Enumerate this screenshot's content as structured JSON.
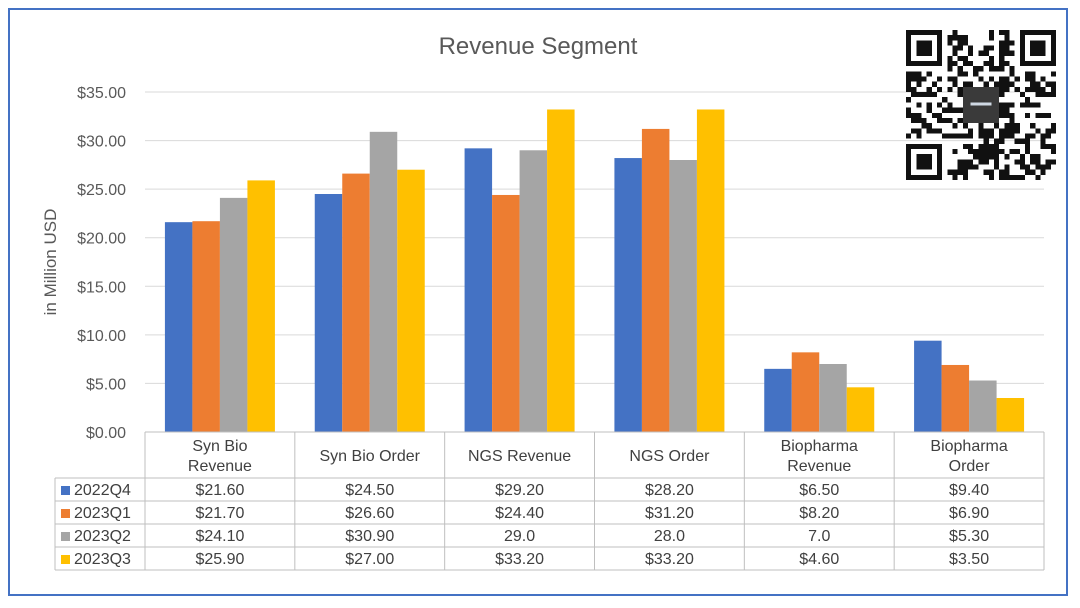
{
  "chart_data": {
    "type": "bar",
    "title": "Revenue Segment",
    "ylabel": "in Million USD",
    "xlabel": "",
    "ylim": [
      0,
      35
    ],
    "yticks": [
      "$0.00",
      "$5.00",
      "$10.00",
      "$15.00",
      "$20.00",
      "$25.00",
      "$30.00",
      "$35.00"
    ],
    "categories": [
      [
        "Syn Bio",
        "Revenue"
      ],
      [
        "Syn Bio Order"
      ],
      [
        "NGS Revenue"
      ],
      [
        "NGS Order"
      ],
      [
        "Biopharma",
        "Revenue"
      ],
      [
        "Biopharma",
        "Order"
      ]
    ],
    "grid": true,
    "legend": "table-below",
    "series": [
      {
        "name": "2022Q4",
        "color": "#4472c4",
        "values": [
          21.6,
          24.5,
          29.2,
          28.2,
          6.5,
          9.4
        ],
        "labels": [
          "$21.60",
          "$24.50",
          "$29.20",
          "$28.20",
          "$6.50",
          "$9.40"
        ]
      },
      {
        "name": "2023Q1",
        "color": "#ed7d31",
        "values": [
          21.7,
          26.6,
          24.4,
          31.2,
          8.2,
          6.9
        ],
        "labels": [
          "$21.70",
          "$26.60",
          "$24.40",
          "$31.20",
          "$8.20",
          "$6.90"
        ]
      },
      {
        "name": "2023Q2",
        "color": "#a5a5a5",
        "values": [
          24.1,
          30.9,
          29.0,
          28.0,
          7.0,
          5.3
        ],
        "labels": [
          "$24.10",
          "$30.90",
          "29.0",
          "28.0",
          "7.0",
          "$5.30"
        ]
      },
      {
        "name": "2023Q3",
        "color": "#ffc000",
        "values": [
          25.9,
          27.0,
          33.2,
          33.2,
          4.6,
          3.5
        ],
        "labels": [
          "$25.90",
          "$27.00",
          "$33.20",
          "$33.20",
          "$4.60",
          "$3.50"
        ]
      }
    ]
  },
  "qr_code": {
    "icon": "qr-code-icon",
    "color": "#111111"
  }
}
